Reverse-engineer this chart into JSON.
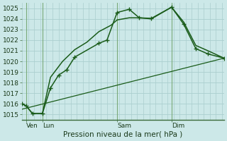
{
  "title": "",
  "xlabel": "Pression niveau de la mer( hPa )",
  "ylabel": "",
  "bg_color": "#cce8e8",
  "grid_color": "#aacece",
  "line_color": "#1a5c1a",
  "ylim": [
    1014.5,
    1025.5
  ],
  "xlim": [
    0,
    100
  ],
  "yticks": [
    1015,
    1016,
    1017,
    1018,
    1019,
    1020,
    1021,
    1022,
    1023,
    1024,
    1025
  ],
  "xtick_positions": [
    2,
    10,
    47,
    74
  ],
  "xtick_labels": [
    "Ven",
    "Lun",
    "Sam",
    "Dim"
  ],
  "vlines": [
    2,
    10,
    47,
    74
  ],
  "line1_x": [
    0,
    2,
    5,
    10,
    14,
    18,
    22,
    26,
    38,
    42,
    47,
    53,
    58,
    64,
    74,
    80,
    86,
    92,
    100
  ],
  "line1_y": [
    1016.0,
    1015.8,
    1015.1,
    1015.1,
    1017.5,
    1018.7,
    1019.2,
    1020.4,
    1021.7,
    1022.0,
    1024.6,
    1024.9,
    1024.1,
    1024.05,
    1025.1,
    1023.5,
    1021.2,
    1020.7,
    1020.3
  ],
  "line2_x": [
    0,
    2,
    5,
    10,
    14,
    20,
    26,
    32,
    38,
    44,
    47,
    53,
    58,
    64,
    74,
    80,
    86,
    92,
    100
  ],
  "line2_y": [
    1016.0,
    1015.8,
    1015.1,
    1015.1,
    1018.5,
    1020.0,
    1021.1,
    1021.8,
    1022.8,
    1023.4,
    1023.9,
    1024.1,
    1024.1,
    1024.0,
    1025.1,
    1023.7,
    1021.5,
    1021.0,
    1020.3
  ],
  "line3_x": [
    0,
    100
  ],
  "line3_y": [
    1015.5,
    1020.3
  ],
  "font_family": "DejaVu Sans",
  "tick_fontsize": 6.5,
  "label_fontsize": 7.5
}
